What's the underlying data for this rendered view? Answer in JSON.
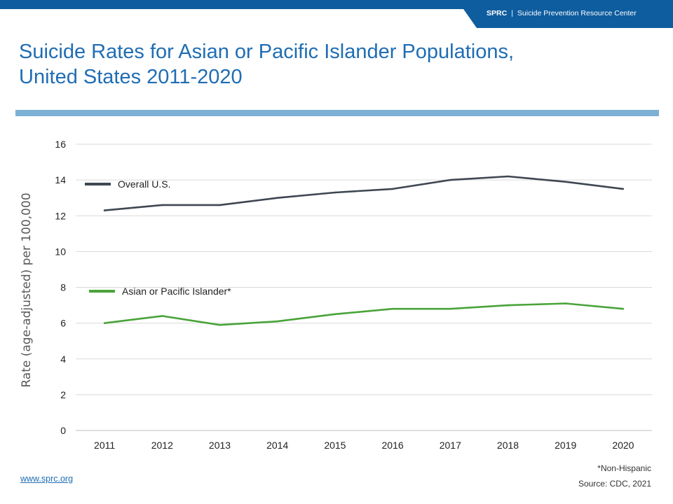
{
  "header": {
    "brand_short": "SPRC",
    "brand_separator": "|",
    "brand_full": "Suicide Prevention Resource Center"
  },
  "title_line1": "Suicide Rates for Asian or Pacific Islander Populations,",
  "title_line2": "United States 2011-2020",
  "footer": {
    "link": "www.sprc.org",
    "footnote": "*Non-Hispanic",
    "source": "Source: CDC, 2021"
  },
  "colors": {
    "brand_blue": "#0e5d9f",
    "title_blue": "#1f6db3",
    "rule_blue": "#7db0d5",
    "overall_line": "#3f4752",
    "api_line": "#4aa33a",
    "gridline": "#d9d9d9"
  },
  "chart_data": {
    "type": "line",
    "title": "",
    "xlabel": "",
    "ylabel": "Rate (age-adjusted) per 100,000",
    "categories": [
      "2011",
      "2012",
      "2013",
      "2014",
      "2015",
      "2016",
      "2017",
      "2018",
      "2019",
      "2020"
    ],
    "ylim": [
      0,
      16
    ],
    "yticks": [
      0,
      2,
      4,
      6,
      8,
      10,
      12,
      14,
      16
    ],
    "grid": true,
    "legend": "inline",
    "series": [
      {
        "name": "Overall U.S.",
        "color": "#3f4752",
        "values": [
          12.3,
          12.6,
          12.6,
          13.0,
          13.3,
          13.5,
          14.0,
          14.2,
          13.9,
          13.5
        ]
      },
      {
        "name": "Asian or Pacific Islander*",
        "color": "#4aa33a",
        "values": [
          6.0,
          6.4,
          5.9,
          6.1,
          6.5,
          6.8,
          6.8,
          7.0,
          7.1,
          6.8
        ]
      }
    ]
  }
}
